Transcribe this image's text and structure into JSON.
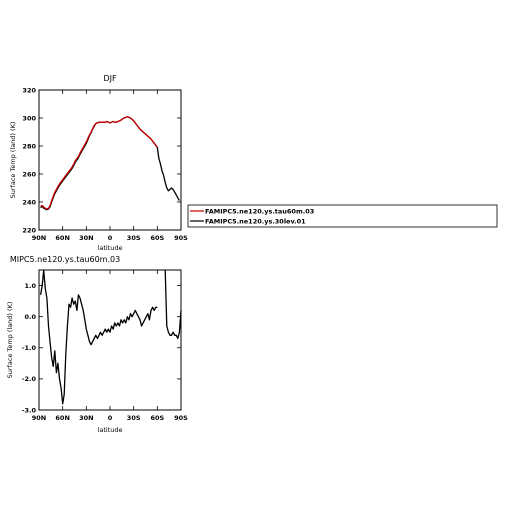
{
  "chart_data": [
    {
      "type": "line",
      "title": "DJF",
      "xlabel": "latitude",
      "ylabel": "Surface Temp (land) (K)",
      "x_ticks": [
        "90N",
        "60N",
        "30N",
        "0",
        "30S",
        "60S",
        "90S"
      ],
      "x_tick_values": [
        90,
        60,
        30,
        0,
        -30,
        -60,
        -90
      ],
      "y_ticks": [
        "220",
        "240",
        "260",
        "280",
        "300",
        "320"
      ],
      "y_tick_values": [
        220,
        240,
        260,
        280,
        300,
        320
      ],
      "xlim": [
        90,
        -90
      ],
      "ylim": [
        220,
        320
      ],
      "legend": "right",
      "series": [
        {
          "name": "FAMIPC5.ne120.ys.tau60m.03",
          "color": "#cc0000",
          "x": [
            88,
            86,
            84,
            82,
            80,
            78,
            76,
            74,
            72,
            70,
            68,
            66,
            64,
            62,
            60,
            58,
            56,
            54,
            52,
            50,
            48,
            46,
            44,
            42,
            40,
            38,
            36,
            34,
            32,
            30,
            28,
            26,
            24,
            22,
            20,
            18,
            16,
            14,
            12,
            10,
            8,
            6,
            4,
            2,
            0,
            -2,
            -4,
            -6,
            -8,
            -10,
            -12,
            -14,
            -16,
            -18,
            -20,
            -22,
            -24,
            -26,
            -28,
            -30,
            -32,
            -34,
            -36,
            -38,
            -40,
            -42,
            -44,
            -46,
            -48,
            -50,
            -52,
            -54,
            -56,
            -58,
            -60
          ],
          "y": [
            237,
            237.5,
            236.5,
            235.5,
            235,
            235.5,
            237.5,
            241,
            244,
            247,
            249,
            251,
            253,
            254.5,
            256,
            257.5,
            259,
            260.5,
            262,
            263.5,
            265,
            267,
            269.5,
            271,
            272.5,
            275,
            277,
            279,
            281,
            283,
            285.5,
            288,
            290,
            292.5,
            294.5,
            296,
            296.5,
            297,
            297,
            297,
            297,
            297,
            297.5,
            297,
            296.5,
            297,
            297.5,
            297,
            297,
            297.5,
            298,
            298.5,
            299.5,
            300,
            300.5,
            301,
            300.5,
            300,
            299,
            298,
            296.5,
            295,
            293.5,
            292,
            291,
            290,
            289,
            288,
            287,
            286,
            285,
            283.5,
            282,
            280.5,
            279
          ]
        },
        {
          "name": "FAMIPC5.ne120.ys.30lev.01",
          "color": "#000000",
          "x": [
            88,
            86,
            84,
            82,
            80,
            78,
            76,
            74,
            72,
            70,
            68,
            66,
            64,
            62,
            60,
            58,
            56,
            54,
            52,
            50,
            48,
            46,
            44,
            42,
            40,
            38,
            36,
            34,
            32,
            30,
            28,
            26,
            24,
            22,
            20,
            18,
            16,
            14,
            12,
            10,
            8,
            6,
            4,
            2,
            0,
            -2,
            -4,
            -6,
            -8,
            -10,
            -12,
            -14,
            -16,
            -18,
            -20,
            -22,
            -24,
            -26,
            -28,
            -30,
            -32,
            -34,
            -36,
            -38,
            -40,
            -42,
            -44,
            -46,
            -48,
            -50,
            -52,
            -54,
            -56,
            -58,
            -60,
            -62,
            -64,
            -66,
            -68,
            -70,
            -72,
            -74,
            -76,
            -78,
            -80,
            -82,
            -84,
            -86,
            -88
          ],
          "y": [
            236,
            237,
            235.5,
            235,
            234.5,
            235,
            236.5,
            240,
            243,
            246,
            248,
            250,
            252,
            253.5,
            255,
            256.5,
            258,
            259.5,
            261,
            262.5,
            264,
            266,
            268.5,
            270,
            271.5,
            274,
            276,
            278,
            280,
            282,
            284.5,
            287.5,
            289.5,
            292,
            294,
            296,
            296.5,
            297,
            297,
            297,
            297,
            297,
            297.5,
            297,
            296.5,
            297,
            297.5,
            297,
            297,
            297.5,
            298,
            298.5,
            299.5,
            300,
            300.5,
            301,
            300.5,
            300,
            299,
            298,
            296.5,
            295,
            293.5,
            292,
            291,
            290,
            289,
            288,
            287,
            286,
            285,
            283.5,
            282,
            280.5,
            279,
            271,
            267,
            262,
            259,
            254,
            250,
            248,
            249,
            250,
            249,
            247,
            245,
            243,
            241
          ]
        }
      ]
    },
    {
      "type": "line",
      "title": "MIPC5.ne120.ys.tau60m.03",
      "xlabel": "latitude",
      "ylabel": "Surface Temp (land) (K)",
      "x_ticks": [
        "90N",
        "60N",
        "30N",
        "0",
        "30S",
        "60S",
        "90S"
      ],
      "x_tick_values": [
        90,
        60,
        30,
        0,
        -30,
        -60,
        -90
      ],
      "y_ticks": [
        "-3.0",
        "-2.0",
        "-1.0",
        "0.0",
        "1.0"
      ],
      "y_tick_values": [
        -3,
        -2,
        -1,
        0,
        1
      ],
      "xlim": [
        90,
        -90
      ],
      "ylim": [
        -3,
        1.5
      ],
      "series": [
        {
          "color": "#000000",
          "x": [
            88,
            86,
            84,
            82,
            80,
            78,
            76,
            74,
            72,
            70,
            68,
            66,
            64,
            62,
            60,
            58,
            56,
            54,
            52,
            50,
            48,
            46,
            44,
            42,
            40,
            38,
            36,
            34,
            32,
            30,
            28,
            26,
            24,
            22,
            20,
            18,
            16,
            14,
            12,
            10,
            8,
            6,
            4,
            2,
            0,
            -2,
            -4,
            -6,
            -8,
            -10,
            -12,
            -14,
            -16,
            -18,
            -20,
            -22,
            -24,
            -26,
            -28,
            -30,
            -32,
            -34,
            -36,
            -38,
            -40,
            -42,
            -44,
            -46,
            -48,
            -50,
            -52,
            -54,
            -56,
            -58,
            -60
          ],
          "y": [
            0.7,
            1.0,
            1.5,
            0.9,
            0.6,
            -0.3,
            -0.8,
            -1.3,
            -1.6,
            -1.1,
            -1.8,
            -1.5,
            -2.0,
            -2.3,
            -2.8,
            -2.5,
            -1.2,
            -0.3,
            0.4,
            0.3,
            0.6,
            0.4,
            0.5,
            0.2,
            0.7,
            0.6,
            0.4,
            0.2,
            -0.1,
            -0.4,
            -0.6,
            -0.8,
            -0.9,
            -0.8,
            -0.7,
            -0.6,
            -0.7,
            -0.6,
            -0.5,
            -0.6,
            -0.5,
            -0.4,
            -0.5,
            -0.4,
            -0.5,
            -0.3,
            -0.4,
            -0.2,
            -0.3,
            -0.2,
            -0.3,
            -0.1,
            -0.2,
            -0.1,
            -0.2,
            0.0,
            -0.1,
            0.1,
            0.0,
            0.1,
            0.2,
            0.1,
            0.0,
            -0.1,
            -0.3,
            -0.2,
            -0.1,
            0.0,
            0.1,
            -0.1,
            0.2,
            0.3,
            0.2,
            0.3,
            0.3
          ]
        },
        {
          "color": "#000000",
          "x": [
            -70,
            -72,
            -74,
            -76,
            -78,
            -80,
            -82,
            -84,
            -86,
            -88,
            -90
          ],
          "y": [
            1.5,
            -0.3,
            -0.5,
            -0.6,
            -0.6,
            -0.5,
            -0.6,
            -0.6,
            -0.7,
            -0.5,
            0.2
          ]
        }
      ]
    }
  ]
}
